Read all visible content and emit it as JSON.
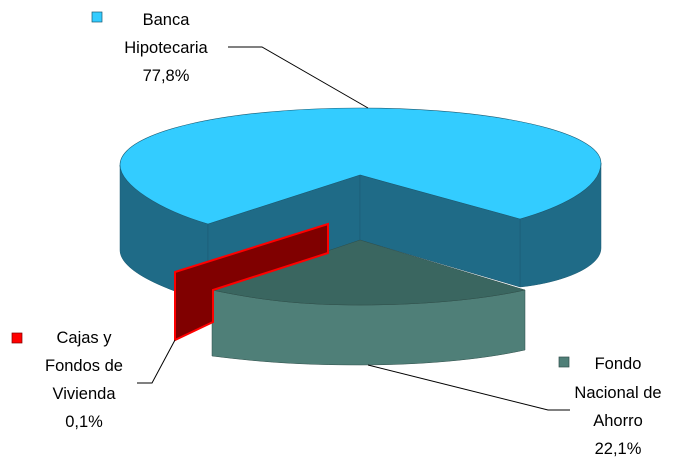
{
  "chart_data": {
    "type": "pie",
    "style": "3d-exploded",
    "slices": [
      {
        "lines": [
          "Banca",
          "Hipotecaria"
        ],
        "value_label": "77,8%",
        "value": 77.8,
        "color": "#33CCFF",
        "side_color": "#1F6B87"
      },
      {
        "lines": [
          "Fondo",
          "Nacional de",
          "Ahorro"
        ],
        "value_label": "22,1%",
        "value": 22.1,
        "color": "#4F7F78",
        "side_color": "#3A6660"
      },
      {
        "lines": [
          "Cajas y",
          "Fondos de",
          "Vivienda"
        ],
        "value_label": "0,1%",
        "value": 0.1,
        "color": "#800000",
        "side_color": "#FF0000"
      }
    ]
  }
}
